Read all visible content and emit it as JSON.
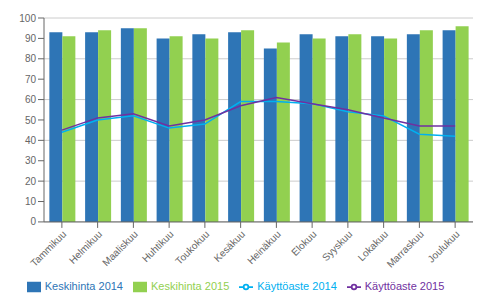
{
  "chart_data": {
    "type": "bar",
    "categories": [
      "Tammikuu",
      "Helmikuu",
      "Maaliskuu",
      "Huhtikuu",
      "Toukokuu",
      "Kesäkuu",
      "Heinäkuu",
      "Elokuu",
      "Syyskuu",
      "Lokakuu",
      "Marraskuu",
      "Joulukuu"
    ],
    "series": [
      {
        "name": "Keskihinta 2014",
        "type": "bar",
        "color": "#2E75B6",
        "values": [
          93,
          93,
          95,
          90,
          92,
          93,
          85,
          92,
          91,
          91,
          92,
          94
        ]
      },
      {
        "name": "Keskihinta 2015",
        "type": "bar",
        "color": "#92D050",
        "values": [
          91,
          94,
          95,
          91,
          90,
          94,
          88,
          90,
          92,
          90,
          94,
          96
        ]
      },
      {
        "name": "Käyttöaste 2014",
        "type": "line",
        "color": "#00B0F0",
        "values": [
          44,
          50,
          52,
          46,
          48,
          59,
          59,
          58,
          54,
          52,
          43,
          42
        ]
      },
      {
        "name": "Käyttöaste 2015",
        "type": "line",
        "color": "#7030A0",
        "values": [
          45,
          51,
          53,
          47,
          50,
          57,
          61,
          58,
          55,
          51,
          47,
          47
        ]
      }
    ],
    "ylim": [
      0,
      100
    ],
    "yticks": [
      0,
      10,
      20,
      30,
      40,
      50,
      60,
      70,
      80,
      90,
      100
    ],
    "grid": true,
    "legend": "bottom"
  }
}
